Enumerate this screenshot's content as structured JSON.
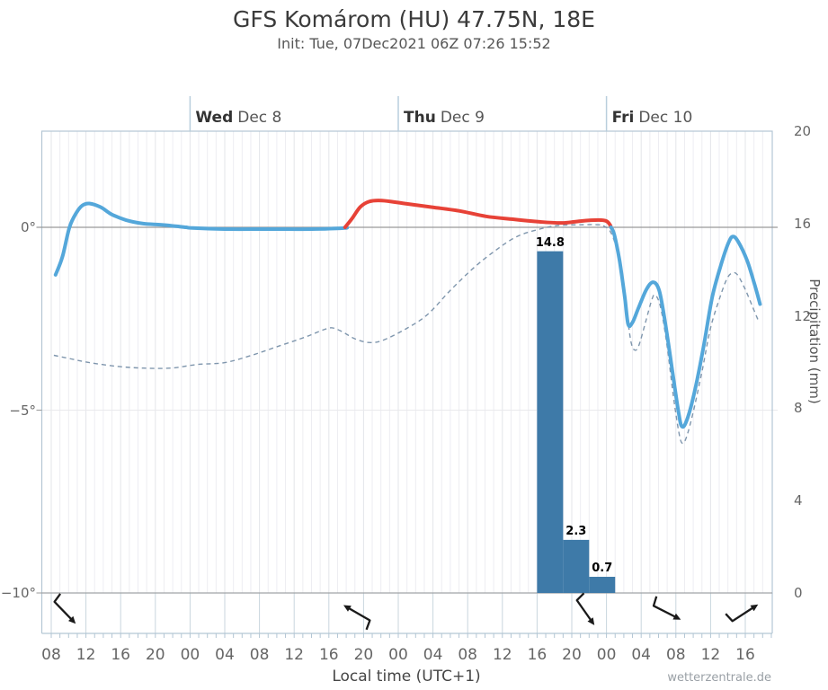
{
  "header": {
    "title": "GFS Komárom (HU) 47.75N, 18E",
    "subtitle": "Init: Tue, 07Dec2021 06Z 07:26 15:52"
  },
  "watermark": "wetterzentrale.de",
  "x_axis": {
    "label": "Local time (UTC+1)",
    "hour_labels": [
      "08",
      "12",
      "16",
      "20",
      "00",
      "04",
      "08",
      "12",
      "16",
      "20",
      "00",
      "04",
      "08",
      "12",
      "16",
      "20",
      "00",
      "04",
      "08",
      "12",
      "16"
    ],
    "label_step_hours": 4
  },
  "day_labels": [
    {
      "day": "Wed",
      "date": "Dec 8",
      "hour": 16
    },
    {
      "day": "Thu",
      "date": "Dec 9",
      "hour": 40
    },
    {
      "day": "Fri",
      "date": "Dec 10",
      "hour": 64
    }
  ],
  "y_axis_left": {
    "ticks": [
      {
        "label": "0°",
        "value": 0
      },
      {
        "label": "−5°",
        "value": -5
      },
      {
        "label": "−10°",
        "value": -10
      }
    ]
  },
  "y_axis_right": {
    "title": "Precipitation (mm)",
    "ticks": [
      {
        "label": "0",
        "value": 0
      },
      {
        "label": "4",
        "value": 4
      },
      {
        "label": "8",
        "value": 8
      },
      {
        "label": "12",
        "value": 12
      },
      {
        "label": "16",
        "value": 16
      },
      {
        "label": "20",
        "value": 20
      }
    ]
  },
  "colors": {
    "temp_above_zero": "#e74237",
    "temp_below_zero": "#54a7da",
    "dewpoint": "#7f96ad",
    "precip_bar": "#3e7aa8",
    "grid_minor": "#ededf2",
    "grid_major": "#e3e5ea",
    "axis_border": "#b3c6d4",
    "strip_grid": "#c9d6de",
    "zero_line": "#999999",
    "minor_grid_line": "#e9e9ec",
    "day_tick": "#b9cedd",
    "wind_arrow": "#1a1a1a"
  },
  "chart_data": {
    "type": "line",
    "x_unit": "hours since Tue 07Dec2021 08:00 local time",
    "temp_axis_range": [
      -10,
      2.6
    ],
    "precip_axis_range": [
      0,
      20
    ],
    "series": [
      {
        "name": "temperature_2m_C",
        "style": "solid, red above 0C, blue below 0C",
        "points": [
          [
            0.5,
            -1.3
          ],
          [
            1.3,
            -0.8
          ],
          [
            2.1,
            0.0
          ],
          [
            2.9,
            0.4
          ],
          [
            3.6,
            0.6
          ],
          [
            4.4,
            0.65
          ],
          [
            5.7,
            0.55
          ],
          [
            7.0,
            0.35
          ],
          [
            8.6,
            0.2
          ],
          [
            10.6,
            0.1
          ],
          [
            12.7,
            0.07
          ],
          [
            14.8,
            0.02
          ],
          [
            16.3,
            -0.02
          ],
          [
            20,
            -0.05
          ],
          [
            25,
            -0.05
          ],
          [
            30,
            -0.05
          ],
          [
            33.8,
            -0.02
          ],
          [
            34.7,
            0.25
          ],
          [
            35.6,
            0.55
          ],
          [
            36.6,
            0.7
          ],
          [
            38.1,
            0.73
          ],
          [
            40.7,
            0.65
          ],
          [
            43.9,
            0.55
          ],
          [
            47,
            0.45
          ],
          [
            50.1,
            0.3
          ],
          [
            53.2,
            0.22
          ],
          [
            56.3,
            0.15
          ],
          [
            58.9,
            0.12
          ],
          [
            61,
            0.17
          ],
          [
            63.1,
            0.2
          ],
          [
            64,
            0.17
          ],
          [
            64.4,
            0.07
          ],
          [
            64.9,
            -0.2
          ],
          [
            65.5,
            -0.9
          ],
          [
            66.1,
            -1.9
          ],
          [
            66.5,
            -2.65
          ],
          [
            67,
            -2.6
          ],
          [
            67.7,
            -2.2
          ],
          [
            68.6,
            -1.7
          ],
          [
            69.4,
            -1.5
          ],
          [
            70.1,
            -1.75
          ],
          [
            70.8,
            -2.65
          ],
          [
            71.7,
            -4.1
          ],
          [
            72.3,
            -5.05
          ],
          [
            72.7,
            -5.45
          ],
          [
            73.3,
            -5.25
          ],
          [
            74.2,
            -4.45
          ],
          [
            75.2,
            -3.25
          ],
          [
            76.2,
            -1.9
          ],
          [
            77.3,
            -0.95
          ],
          [
            78.1,
            -0.4
          ],
          [
            78.6,
            -0.25
          ],
          [
            79.2,
            -0.4
          ],
          [
            80.2,
            -0.9
          ],
          [
            81,
            -1.5
          ],
          [
            81.7,
            -2.1
          ]
        ]
      },
      {
        "name": "dewpoint_2m_C",
        "style": "dashed",
        "points": [
          [
            0.3,
            -3.5
          ],
          [
            2.3,
            -3.6
          ],
          [
            4.4,
            -3.7
          ],
          [
            7.5,
            -3.8
          ],
          [
            10.6,
            -3.85
          ],
          [
            13.8,
            -3.85
          ],
          [
            16.9,
            -3.75
          ],
          [
            20,
            -3.7
          ],
          [
            23.1,
            -3.5
          ],
          [
            26.2,
            -3.25
          ],
          [
            29.3,
            -3.0
          ],
          [
            31.4,
            -2.8
          ],
          [
            32.4,
            -2.75
          ],
          [
            33.5,
            -2.85
          ],
          [
            35,
            -3.05
          ],
          [
            36.6,
            -3.15
          ],
          [
            38.1,
            -3.1
          ],
          [
            40.7,
            -2.8
          ],
          [
            43.3,
            -2.4
          ],
          [
            45.9,
            -1.75
          ],
          [
            48.5,
            -1.15
          ],
          [
            51.1,
            -0.65
          ],
          [
            53.7,
            -0.25
          ],
          [
            56.3,
            -0.05
          ],
          [
            58.4,
            0.05
          ],
          [
            61,
            0.07
          ],
          [
            63.1,
            0.07
          ],
          [
            63.8,
            0.02
          ],
          [
            64.4,
            -0.1
          ],
          [
            65,
            -0.45
          ],
          [
            65.7,
            -1.15
          ],
          [
            66.3,
            -2.25
          ],
          [
            66.8,
            -3.1
          ],
          [
            67.2,
            -3.35
          ],
          [
            67.7,
            -3.25
          ],
          [
            68.5,
            -2.6
          ],
          [
            69.2,
            -2.0
          ],
          [
            69.6,
            -1.85
          ],
          [
            70.2,
            -2.15
          ],
          [
            70.9,
            -3.1
          ],
          [
            71.7,
            -4.6
          ],
          [
            72.3,
            -5.55
          ],
          [
            72.7,
            -5.9
          ],
          [
            73.2,
            -5.75
          ],
          [
            74,
            -5.05
          ],
          [
            75,
            -3.95
          ],
          [
            76,
            -2.75
          ],
          [
            77.1,
            -1.9
          ],
          [
            77.9,
            -1.4
          ],
          [
            78.5,
            -1.25
          ],
          [
            79.1,
            -1.3
          ],
          [
            80,
            -1.7
          ],
          [
            80.8,
            -2.15
          ],
          [
            81.5,
            -2.55
          ]
        ]
      }
    ],
    "precipitation_bars": [
      {
        "start_hour": 56,
        "end_hour": 59,
        "value_mm": 14.8,
        "label": "14.8"
      },
      {
        "start_hour": 59,
        "end_hour": 62,
        "value_mm": 2.3,
        "label": "2.3"
      },
      {
        "start_hour": 62,
        "end_hour": 65,
        "value_mm": 0.7,
        "label": "0.7"
      }
    ],
    "wind_arrows": [
      {
        "hour": 1.6,
        "points_to_deg": 46,
        "wind_from": "NW"
      },
      {
        "hour": 35.2,
        "points_to_deg": -150,
        "wind_from": "SE"
      },
      {
        "hour": 61.6,
        "points_to_deg": 55,
        "wind_from": "NNW"
      },
      {
        "hour": 71.0,
        "points_to_deg": 27,
        "wind_from": "WNW"
      },
      {
        "hour": 80.0,
        "points_to_deg": -33,
        "wind_from": "WSW"
      }
    ]
  }
}
